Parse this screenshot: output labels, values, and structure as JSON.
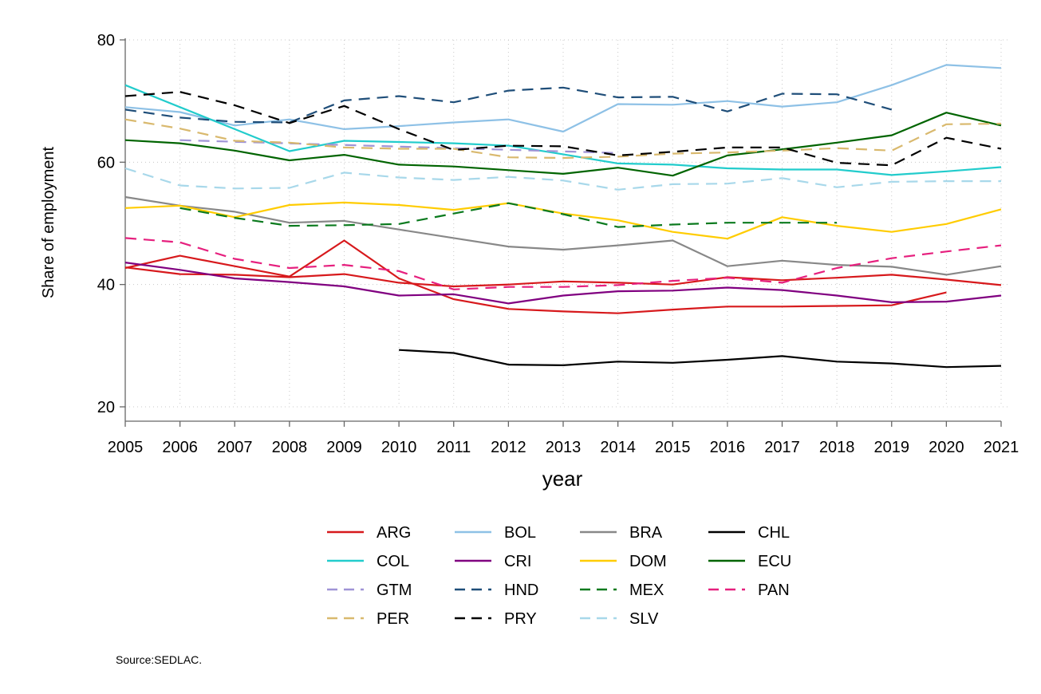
{
  "chart_data": {
    "type": "line",
    "title": "",
    "xlabel": "year",
    "ylabel": "Share of employment",
    "note": "Source:SEDLAC.",
    "xlim": [
      2005,
      2021
    ],
    "ylim": [
      20,
      80
    ],
    "x_ticks": [
      2005,
      2006,
      2007,
      2008,
      2009,
      2010,
      2011,
      2012,
      2013,
      2014,
      2015,
      2016,
      2017,
      2018,
      2019,
      2020,
      2021
    ],
    "y_ticks": [
      20,
      40,
      60,
      80
    ],
    "grid": true,
    "legend_position": "bottom",
    "series": [
      {
        "name": "ARG",
        "color": "#d7191c",
        "dash": "solid",
        "x": [
          2005,
          2006,
          2007,
          2008,
          2009,
          2010,
          2011,
          2012,
          2013,
          2014,
          2015,
          2016,
          2017,
          2018,
          2019,
          2020,
          2021
        ],
        "values": [
          42.8,
          41.7,
          41.6,
          41.2,
          41.7,
          40.3,
          39.7,
          40.0,
          40.5,
          40.3,
          40.0,
          41.2,
          40.7,
          41.1,
          41.6,
          40.8,
          39.9
        ]
      },
      {
        "name": "ARG",
        "color": "#d7191c",
        "dash": "solid",
        "legend": false,
        "x": [
          2005,
          2006,
          2007,
          2008,
          2009,
          2010,
          2011,
          2012,
          2013,
          2014,
          2015,
          2016,
          2017,
          2018,
          2019,
          2020
        ],
        "values": [
          42.7,
          44.7,
          43.0,
          41.3,
          47.2,
          41.0,
          37.6,
          36.0,
          35.6,
          35.3,
          35.9,
          36.4,
          36.4,
          36.5,
          36.6,
          38.7
        ]
      },
      {
        "name": "BOL",
        "color": "#8ec1e6",
        "dash": "solid",
        "x": [
          2005,
          2006,
          2007,
          2008,
          2009,
          2010,
          2011,
          2012,
          2013,
          2014,
          2015,
          2016,
          2017,
          2018,
          2019,
          2020,
          2021
        ],
        "values": [
          69.0,
          68.2,
          66.0,
          67.0,
          65.4,
          65.9,
          66.5,
          67.0,
          65.0,
          69.5,
          69.4,
          70.0,
          69.1,
          69.8,
          72.6,
          75.9,
          75.4
        ]
      },
      {
        "name": "BRA",
        "color": "#888888",
        "dash": "solid",
        "x": [
          2005,
          2006,
          2007,
          2008,
          2009,
          2010,
          2011,
          2012,
          2013,
          2014,
          2015,
          2016,
          2017,
          2018,
          2019,
          2020,
          2021
        ],
        "values": [
          54.3,
          52.9,
          51.9,
          50.1,
          50.4,
          49.0,
          47.6,
          46.2,
          45.7,
          46.4,
          47.2,
          43.0,
          43.9,
          43.2,
          42.9,
          41.6,
          43.0
        ]
      },
      {
        "name": "CHL",
        "color": "#000000",
        "dash": "solid",
        "x": [
          2010,
          2011,
          2012,
          2013,
          2014,
          2015,
          2016,
          2017,
          2018,
          2019,
          2020,
          2021
        ],
        "values": [
          29.3,
          28.8,
          26.9,
          26.8,
          27.4,
          27.2,
          27.7,
          28.3,
          27.4,
          27.1,
          26.5,
          26.7
        ]
      },
      {
        "name": "COL",
        "color": "#22cccc",
        "dash": "solid",
        "x": [
          2005,
          2006,
          2007,
          2008,
          2009,
          2010,
          2011,
          2012,
          2013,
          2014,
          2015,
          2016,
          2017,
          2018,
          2019,
          2020,
          2021
        ],
        "values": [
          72.6,
          69.0,
          65.4,
          61.8,
          63.5,
          63.3,
          63.1,
          62.7,
          61.3,
          59.8,
          59.6,
          59.0,
          58.8,
          58.8,
          57.9,
          58.5,
          59.2
        ]
      },
      {
        "name": "CRI",
        "color": "#800080",
        "dash": "solid",
        "x": [
          2005,
          2006,
          2007,
          2008,
          2009,
          2010,
          2011,
          2012,
          2013,
          2014,
          2015,
          2016,
          2017,
          2018,
          2019,
          2020,
          2021
        ],
        "values": [
          43.6,
          42.4,
          41.0,
          40.4,
          39.7,
          38.2,
          38.4,
          36.9,
          38.2,
          38.9,
          39.0,
          39.5,
          39.1,
          38.2,
          37.1,
          37.2,
          38.2
        ]
      },
      {
        "name": "DOM",
        "color": "#ffcc00",
        "dash": "solid",
        "x": [
          2005,
          2006,
          2007,
          2008,
          2009,
          2010,
          2011,
          2012,
          2013,
          2014,
          2015,
          2016,
          2017,
          2018,
          2019,
          2020,
          2021
        ],
        "values": [
          52.5,
          52.9,
          51.0,
          53.0,
          53.4,
          53.0,
          52.2,
          53.3,
          51.6,
          50.5,
          48.6,
          47.5,
          51.0,
          49.6,
          48.6,
          49.9,
          52.3
        ]
      },
      {
        "name": "ECU",
        "color": "#006400",
        "dash": "solid",
        "x": [
          2005,
          2006,
          2007,
          2008,
          2009,
          2010,
          2011,
          2012,
          2013,
          2014,
          2015,
          2016,
          2017,
          2018,
          2019,
          2020,
          2021
        ],
        "values": [
          63.6,
          63.1,
          61.9,
          60.3,
          61.2,
          59.6,
          59.3,
          58.7,
          58.1,
          59.1,
          57.8,
          61.1,
          62.1,
          63.2,
          64.4,
          68.1,
          66.0
        ]
      },
      {
        "name": "GTM",
        "color": "#9f94d6",
        "dash": "dashed",
        "x": [
          2006,
          2014
        ],
        "values": [
          63.6,
          61.5
        ]
      },
      {
        "name": "HND",
        "color": "#1f4e79",
        "dash": "dashed",
        "x": [
          2005,
          2006,
          2007,
          2008,
          2009,
          2010,
          2011,
          2012,
          2013,
          2014,
          2015,
          2016,
          2017,
          2018,
          2019
        ],
        "values": [
          68.6,
          67.3,
          66.6,
          66.5,
          70.1,
          70.8,
          69.8,
          71.7,
          72.2,
          70.6,
          70.7,
          68.3,
          71.2,
          71.1,
          68.6
        ]
      },
      {
        "name": "MEX",
        "color": "#0b7a1e",
        "dash": "dashed",
        "x": [
          2006,
          2007,
          2008,
          2009,
          2010,
          2011,
          2012,
          2013,
          2014,
          2015,
          2016,
          2017,
          2018
        ],
        "values": [
          52.5,
          50.9,
          49.6,
          49.7,
          49.9,
          51.6,
          53.3,
          51.5,
          49.4,
          49.8,
          50.1,
          50.1,
          50.1
        ]
      },
      {
        "name": "PAN",
        "color": "#e6207e",
        "dash": "dashed",
        "x": [
          2005,
          2006,
          2007,
          2008,
          2009,
          2010,
          2011,
          2012,
          2013,
          2014,
          2015,
          2016,
          2017,
          2018,
          2019,
          2020,
          2021
        ],
        "values": [
          47.6,
          46.9,
          44.2,
          42.7,
          43.2,
          42.2,
          39.2,
          39.6,
          39.6,
          39.9,
          40.6,
          41.1,
          40.3,
          42.7,
          44.3,
          45.4,
          46.4
        ]
      },
      {
        "name": "PER",
        "color": "#d9b96e",
        "dash": "dashed",
        "x": [
          2005,
          2006,
          2007,
          2008,
          2009,
          2010,
          2011,
          2012,
          2013,
          2014,
          2015,
          2016,
          2017,
          2018,
          2019,
          2020,
          2021
        ],
        "values": [
          67.0,
          65.5,
          63.5,
          63.2,
          62.4,
          62.2,
          62.2,
          60.8,
          60.7,
          60.9,
          61.4,
          61.6,
          61.9,
          62.3,
          61.9,
          66.2,
          66.3
        ]
      },
      {
        "name": "PRY",
        "color": "#000000",
        "dash": "dashed",
        "x": [
          2005,
          2006,
          2007,
          2008,
          2009,
          2010,
          2011,
          2012,
          2013,
          2014,
          2015,
          2016,
          2017,
          2018,
          2019,
          2020,
          2021
        ],
        "values": [
          70.8,
          71.5,
          69.3,
          66.4,
          69.2,
          65.4,
          62.0,
          62.7,
          62.6,
          61.1,
          61.7,
          62.4,
          62.4,
          59.9,
          59.5,
          64.0,
          62.2
        ]
      },
      {
        "name": "SLV",
        "color": "#a8d8ea",
        "dash": "dashed",
        "x": [
          2005,
          2006,
          2007,
          2008,
          2009,
          2010,
          2011,
          2012,
          2013,
          2014,
          2015,
          2016,
          2017,
          2018,
          2019,
          2020,
          2021
        ],
        "values": [
          59.0,
          56.2,
          55.7,
          55.8,
          58.3,
          57.5,
          57.1,
          57.6,
          57.0,
          55.5,
          56.4,
          56.5,
          57.4,
          55.9,
          56.8,
          56.9,
          56.9
        ]
      }
    ],
    "legend": [
      [
        "ARG",
        "BOL",
        "BRA",
        "CHL"
      ],
      [
        "COL",
        "CRI",
        "DOM",
        "ECU"
      ],
      [
        "GTM",
        "HND",
        "MEX",
        "PAN"
      ],
      [
        "PER",
        "PRY",
        "SLV"
      ]
    ]
  }
}
